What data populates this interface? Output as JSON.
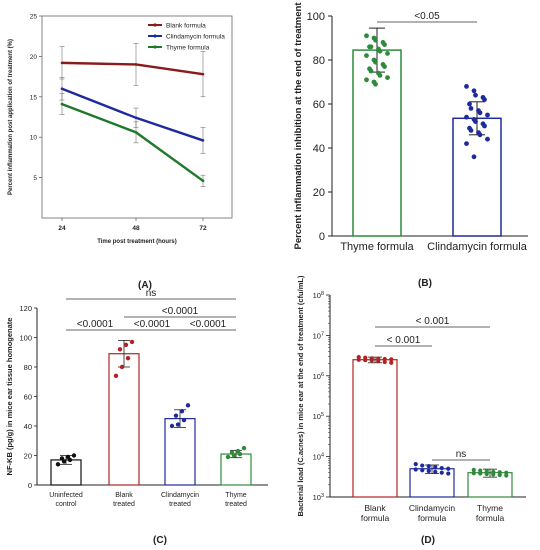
{
  "panel_captions": [
    "(A)",
    "(B)",
    "(C)",
    "(D)"
  ],
  "chart_data": [
    {
      "panel": "(A)",
      "type": "line",
      "xlabel": "Time post treatment (hours)",
      "ylabel": "Percent inflammation post application of treatment (%)",
      "x": [
        24,
        48,
        72
      ],
      "xticks": [
        "24",
        "48",
        "72"
      ],
      "yticks": [
        "5",
        "10",
        "15",
        "20",
        "25"
      ],
      "ylim": [
        0,
        25
      ],
      "legend_position": "top-right",
      "series": [
        {
          "name": "Blank formula",
          "color": "#8b1a1a",
          "values": [
            19.2,
            19.0,
            17.8
          ],
          "err": [
            2.0,
            2.6,
            2.8
          ]
        },
        {
          "name": "Clindamycin formula",
          "color": "#1f2a9c",
          "values": [
            16.0,
            12.4,
            9.6
          ],
          "err": [
            1.4,
            1.2,
            1.6
          ]
        },
        {
          "name": "Thyme formula",
          "color": "#1e7a2a",
          "values": [
            14.1,
            10.6,
            4.6
          ],
          "err": [
            1.3,
            1.3,
            0.7
          ]
        }
      ]
    },
    {
      "panel": "(B)",
      "type": "bar",
      "ylabel": "Percent inflammation inhibition at the end of treatment",
      "ylim": [
        0,
        100
      ],
      "yticks": [
        "0",
        "20",
        "40",
        "60",
        "80",
        "100"
      ],
      "categories": [
        "Thyme formula",
        "Clindamycin formula"
      ],
      "values": [
        84.5,
        53.5
      ],
      "err": [
        10,
        7.5
      ],
      "colors": [
        "#2e8b3a",
        "#1f2a9c"
      ],
      "points": [
        [
          91,
          90,
          89,
          88,
          87,
          86,
          86,
          85,
          84,
          83,
          82,
          80,
          79,
          78,
          77,
          76,
          75,
          74,
          73,
          72,
          71,
          70,
          69
        ],
        [
          68,
          66,
          64,
          63,
          62,
          60,
          58,
          57,
          56,
          55,
          54,
          53,
          52,
          51,
          50,
          49,
          48,
          47,
          46,
          44,
          42,
          36
        ]
      ],
      "comparisons": [
        {
          "label": "<0.05"
        }
      ]
    },
    {
      "panel": "(C)",
      "type": "bar",
      "ylabel": "NF-KB (pg/g) in mice ear tissue homogenate",
      "ylim": [
        0,
        120
      ],
      "yticks": [
        "0",
        "20",
        "40",
        "60",
        "80",
        "100",
        "120"
      ],
      "categories": [
        [
          "Uninfected",
          "control"
        ],
        [
          "Blank",
          "treated"
        ],
        [
          "Clindamycin",
          "treated"
        ],
        [
          "Thyme",
          "treated"
        ]
      ],
      "values": [
        17,
        89,
        45,
        21
      ],
      "err": [
        3,
        9,
        6,
        2.5
      ],
      "colors": [
        "#111111",
        "#b22222",
        "#1f2a9c",
        "#2e8b3a"
      ],
      "points": [
        [
          14,
          16,
          17,
          18,
          19,
          20
        ],
        [
          74,
          80,
          86,
          92,
          95,
          97
        ],
        [
          40,
          41,
          44,
          47,
          50,
          54
        ],
        [
          19,
          20,
          21,
          22,
          23,
          25
        ]
      ],
      "comparisons": [
        {
          "label": "ns"
        },
        {
          "label": "<0.0001"
        },
        {
          "label": "<0.0001"
        },
        {
          "label": "<0.0001"
        },
        {
          "label": "<0.0001"
        }
      ]
    },
    {
      "panel": "(D)",
      "type": "bar",
      "ylabel": "Bacterial load (C.acnes) in mice ear at the end of treatment (cfu/mL)",
      "yscale": "log",
      "ylim": [
        1000,
        100000000
      ],
      "yticks": [
        "10^3",
        "10^4",
        "10^5",
        "10^6",
        "10^7",
        "10^8"
      ],
      "categories": [
        [
          "Blank",
          "formula"
        ],
        [
          "Clindamycin",
          "formula"
        ],
        [
          "Thyme",
          "formula"
        ]
      ],
      "values": [
        2500000,
        5000,
        4000
      ],
      "err": [
        400000,
        1200,
        900
      ],
      "colors": [
        "#b22222",
        "#1f2a9c",
        "#2e8b3a"
      ],
      "points": [
        [
          2900000,
          2800000,
          2700000,
          2650000,
          2600000,
          2550000,
          2500000,
          2450000,
          2400000,
          2300000,
          2200000,
          2100000
        ],
        [
          6500.0,
          6000,
          5800,
          5500,
          5200,
          5000,
          4800,
          4600,
          4400,
          4200,
          4000,
          3800
        ],
        [
          4700,
          4500,
          4400,
          4200,
          4100,
          4000,
          3900,
          3800,
          3700,
          3600,
          3500,
          3400
        ]
      ],
      "comparisons": [
        {
          "label": "< 0.001"
        },
        {
          "label": "< 0.001"
        },
        {
          "label": "ns"
        }
      ]
    }
  ]
}
